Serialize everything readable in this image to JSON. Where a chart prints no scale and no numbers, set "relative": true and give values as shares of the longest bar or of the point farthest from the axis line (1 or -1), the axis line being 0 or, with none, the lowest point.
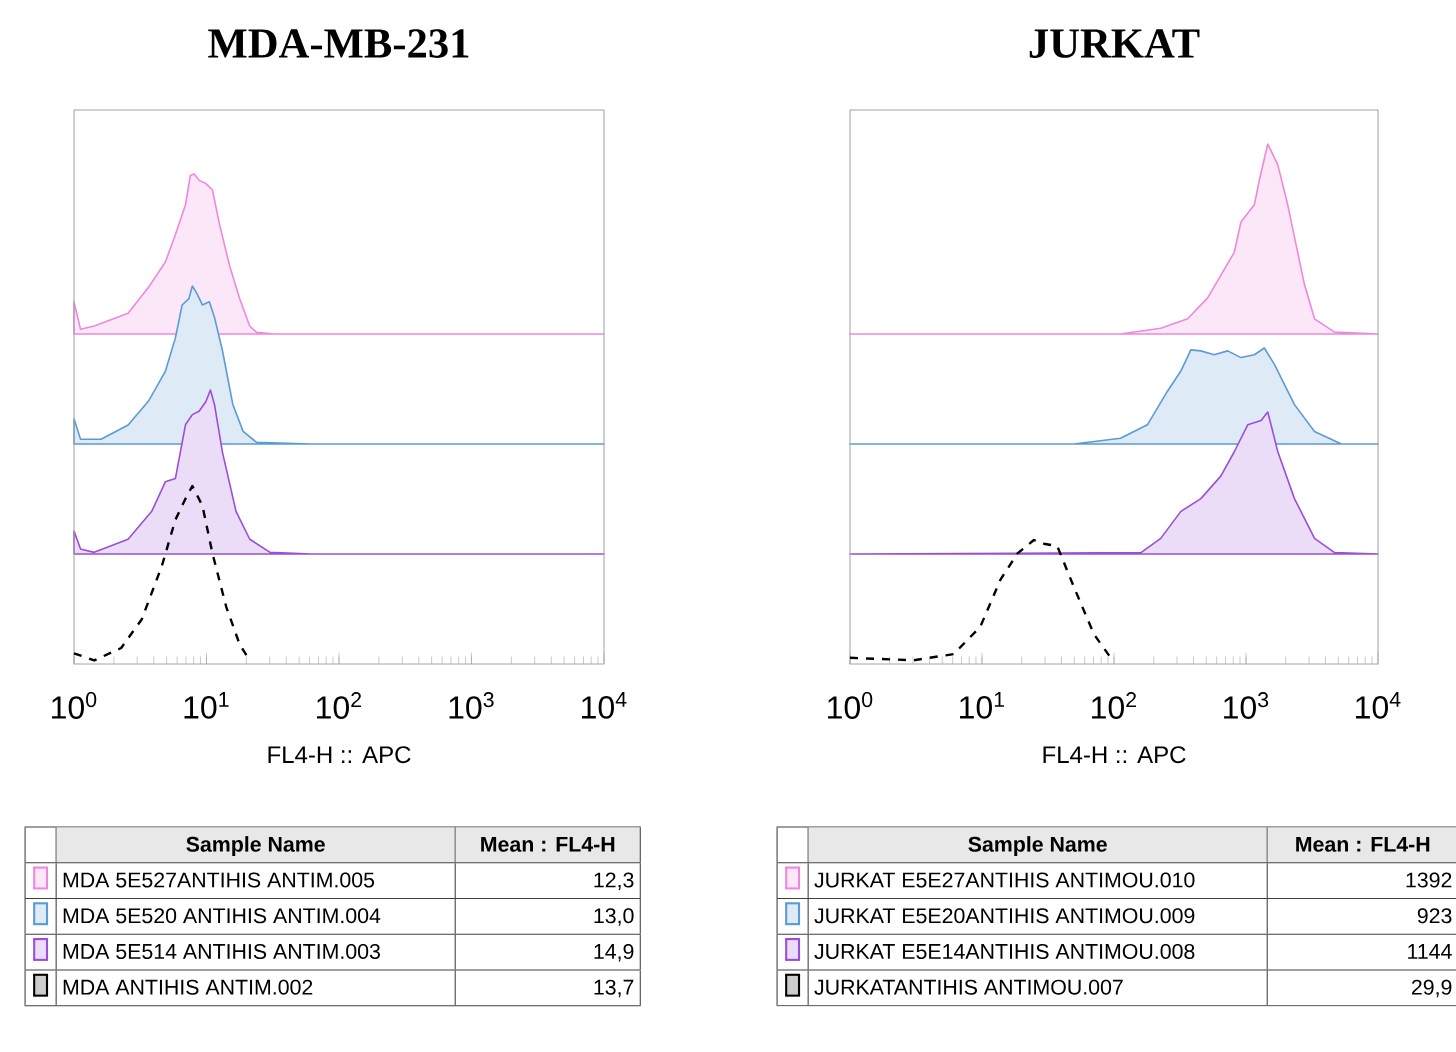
{
  "chart_data": [
    {
      "type": "area",
      "title": "MDA-MB-231",
      "relative": true,
      "log": "x",
      "xlim": [
        1,
        10000
      ],
      "tick_labels": false,
      "series": [
        {
          "color": "#ee88dd",
          "x": [
            1,
            1.12,
            1.42,
            2.56,
            3.64,
            4.89,
            5.82,
            6.95,
            7.55,
            8.09,
            8.79,
            9.9,
            11.1,
            12.5,
            14.9,
            17.8,
            21.2,
            23.9,
            32,
            10000
          ],
          "values": [
            0.2,
            0.03,
            0.05,
            0.13,
            0.29,
            0.45,
            0.62,
            0.81,
            0.99,
            1.0,
            0.96,
            0.94,
            0.9,
            0.69,
            0.43,
            0.22,
            0.05,
            0.01,
            0.0,
            0.0
          ]
        }
      ]
    },
    {
      "type": "area",
      "relative": true,
      "log": "x",
      "xlim": [
        1,
        10000
      ],
      "tick_labels": false,
      "series": [
        {
          "color": "#5b9bd5",
          "x": [
            1,
            1.12,
            1.6,
            2.56,
            3.64,
            4.89,
            5.82,
            6.55,
            7.36,
            7.82,
            8.49,
            9.31,
            10.5,
            11.5,
            13.2,
            15.8,
            18.9,
            23.9,
            61,
            10000
          ],
          "values": [
            0.16,
            0.03,
            0.03,
            0.12,
            0.27,
            0.46,
            0.67,
            0.88,
            0.92,
            1.0,
            0.95,
            0.88,
            0.9,
            0.8,
            0.59,
            0.25,
            0.08,
            0.01,
            0.0,
            0.0
          ]
        }
      ]
    },
    {
      "type": "area",
      "relative": true,
      "log": "x",
      "xlim": [
        1,
        10000
      ],
      "tick_labels": false,
      "series": [
        {
          "color": "#9b4fd6",
          "x": [
            1,
            1.12,
            1.42,
            2.56,
            3.86,
            4.89,
            5.82,
            6.95,
            7.82,
            8.79,
            9.9,
            10.7,
            11.5,
            13.2,
            16.7,
            21.2,
            30.2,
            61,
            10000
          ],
          "values": [
            0.14,
            0.03,
            0.01,
            0.09,
            0.26,
            0.44,
            0.46,
            0.79,
            0.85,
            0.87,
            0.93,
            1.0,
            0.91,
            0.62,
            0.26,
            0.09,
            0.01,
            0.0,
            0.0
          ]
        }
      ]
    },
    {
      "type": "line",
      "line_style": "dashed",
      "relative": true,
      "log": "x",
      "xlim": [
        1,
        10000
      ],
      "xlabel": "FL4-H :: APC",
      "tick_labels": "x",
      "xticks": [
        {
          "value": 1,
          "label": "10$^{0}$"
        },
        {
          "value": 10,
          "label": "10$^{1}$"
        },
        {
          "value": 100,
          "label": "10$^{2}$"
        },
        {
          "value": 1000,
          "label": "10$^{3}$"
        },
        {
          "value": 10000,
          "label": "10$^{4}$"
        }
      ],
      "series": [
        {
          "color": "#000000",
          "x": [
            1,
            1.42,
            2.27,
            3.24,
            4.6,
            5.82,
            6.95,
            7.82,
            9.31,
            11.1,
            14.1,
            17.8,
            21.2
          ],
          "values": [
            0.06,
            0.02,
            0.09,
            0.25,
            0.55,
            0.81,
            0.93,
            1.0,
            0.89,
            0.62,
            0.32,
            0.11,
            0.02
          ]
        }
      ]
    },
    {
      "type": "area",
      "title": "JURKAT",
      "relative": true,
      "log": "x",
      "xlim": [
        1,
        10000
      ],
      "tick_labels": false,
      "series": [
        {
          "color": "#ee88dd",
          "x": [
            1,
            112,
            226,
            361,
            512,
            646,
            815,
            916,
            1156,
            1271,
            1462,
            1742,
            2070,
            2328,
            2773,
            3304,
            4688,
            10000
          ],
          "values": [
            0.0,
            0.0,
            0.03,
            0.08,
            0.19,
            0.31,
            0.43,
            0.59,
            0.68,
            0.82,
            1.0,
            0.89,
            0.68,
            0.51,
            0.26,
            0.08,
            0.01,
            0.0
          ]
        }
      ]
    },
    {
      "type": "area",
      "relative": true,
      "log": "x",
      "xlim": [
        1,
        10000
      ],
      "tick_labels": false,
      "series": [
        {
          "color": "#5b9bd5",
          "x": [
            1,
            49.7,
            112,
            179,
            254,
            321,
            382,
            455,
            574,
            726,
            916,
            1156,
            1377,
            1641,
            2328,
            3304,
            5272,
            10000
          ],
          "values": [
            0.0,
            0.0,
            0.06,
            0.2,
            0.55,
            0.76,
            0.98,
            0.97,
            0.93,
            0.97,
            0.9,
            0.93,
            1.0,
            0.83,
            0.41,
            0.13,
            0.0,
            0.0
          ]
        }
      ]
    },
    {
      "type": "area",
      "relative": true,
      "log": "x",
      "xlim": [
        1,
        10000
      ],
      "tick_labels": false,
      "series": [
        {
          "color": "#9b4fd6",
          "x": [
            1,
            160,
            226,
            321,
            455,
            646,
            815,
            1030,
            1300,
            1462,
            1742,
            2328,
            3304,
            4688,
            10000
          ],
          "values": [
            0.0,
            0.01,
            0.11,
            0.3,
            0.39,
            0.55,
            0.72,
            0.91,
            0.94,
            1.0,
            0.72,
            0.39,
            0.11,
            0.01,
            0.0
          ]
        }
      ]
    },
    {
      "type": "line",
      "line_style": "dashed",
      "relative": true,
      "log": "x",
      "xlim": [
        1,
        10000
      ],
      "xlabel": "FL4-H :: APC",
      "tick_labels": "x",
      "xticks": [
        {
          "value": 1,
          "label": "10$^{0}$"
        },
        {
          "value": 10,
          "label": "10$^{1}$"
        },
        {
          "value": 100,
          "label": "10$^{2}$"
        },
        {
          "value": 1000,
          "label": "10$^{3}$"
        },
        {
          "value": 10000,
          "label": "10$^{4}$"
        }
      ],
      "series": [
        {
          "color": "#000000",
          "x": [
            1,
            3.03,
            6.1,
            9.7,
            13.8,
            18.5,
            24.7,
            29.4,
            37.2,
            49.7,
            70.5,
            94.4
          ],
          "values": [
            0.05,
            0.03,
            0.08,
            0.3,
            0.68,
            0.89,
            1.0,
            0.97,
            0.95,
            0.62,
            0.24,
            0.05
          ]
        }
      ]
    },
    {
      "type": "other",
      "annotations": [
        "Sample Name",
        "Mean : FL4-H"
      ],
      "categories": [
        "MDA 5E527ANTIHIS ANTIM.005",
        "MDA 5E520 ANTIHIS ANTIM.004",
        "MDA 5E514 ANTIHIS ANTIM.003",
        "MDA ANTIHIS ANTIM.002"
      ],
      "value_labels": [
        "12,3",
        "13,0",
        "14,9",
        "13,7"
      ],
      "colors": [
        "#ee88dd",
        "#5b9bd5",
        "#9b4fd6",
        "#000000"
      ]
    },
    {
      "type": "other",
      "annotations": [
        "Sample Name",
        "Mean : FL4-H"
      ],
      "categories": [
        "JURKAT E5E27ANTIHIS ANTIMOU.010",
        "JURKAT E5E20ANTIHIS ANTIMOU.009",
        "JURKAT E5E14ANTIHIS ANTIMOU.008",
        "JURKATANTIHIS ANTIMOU.007"
      ],
      "value_labels": [
        "1392",
        "923",
        "1144",
        "29,9"
      ],
      "colors": [
        "#ee88dd",
        "#5b9bd5",
        "#9b4fd6",
        "#000000"
      ]
    }
  ]
}
